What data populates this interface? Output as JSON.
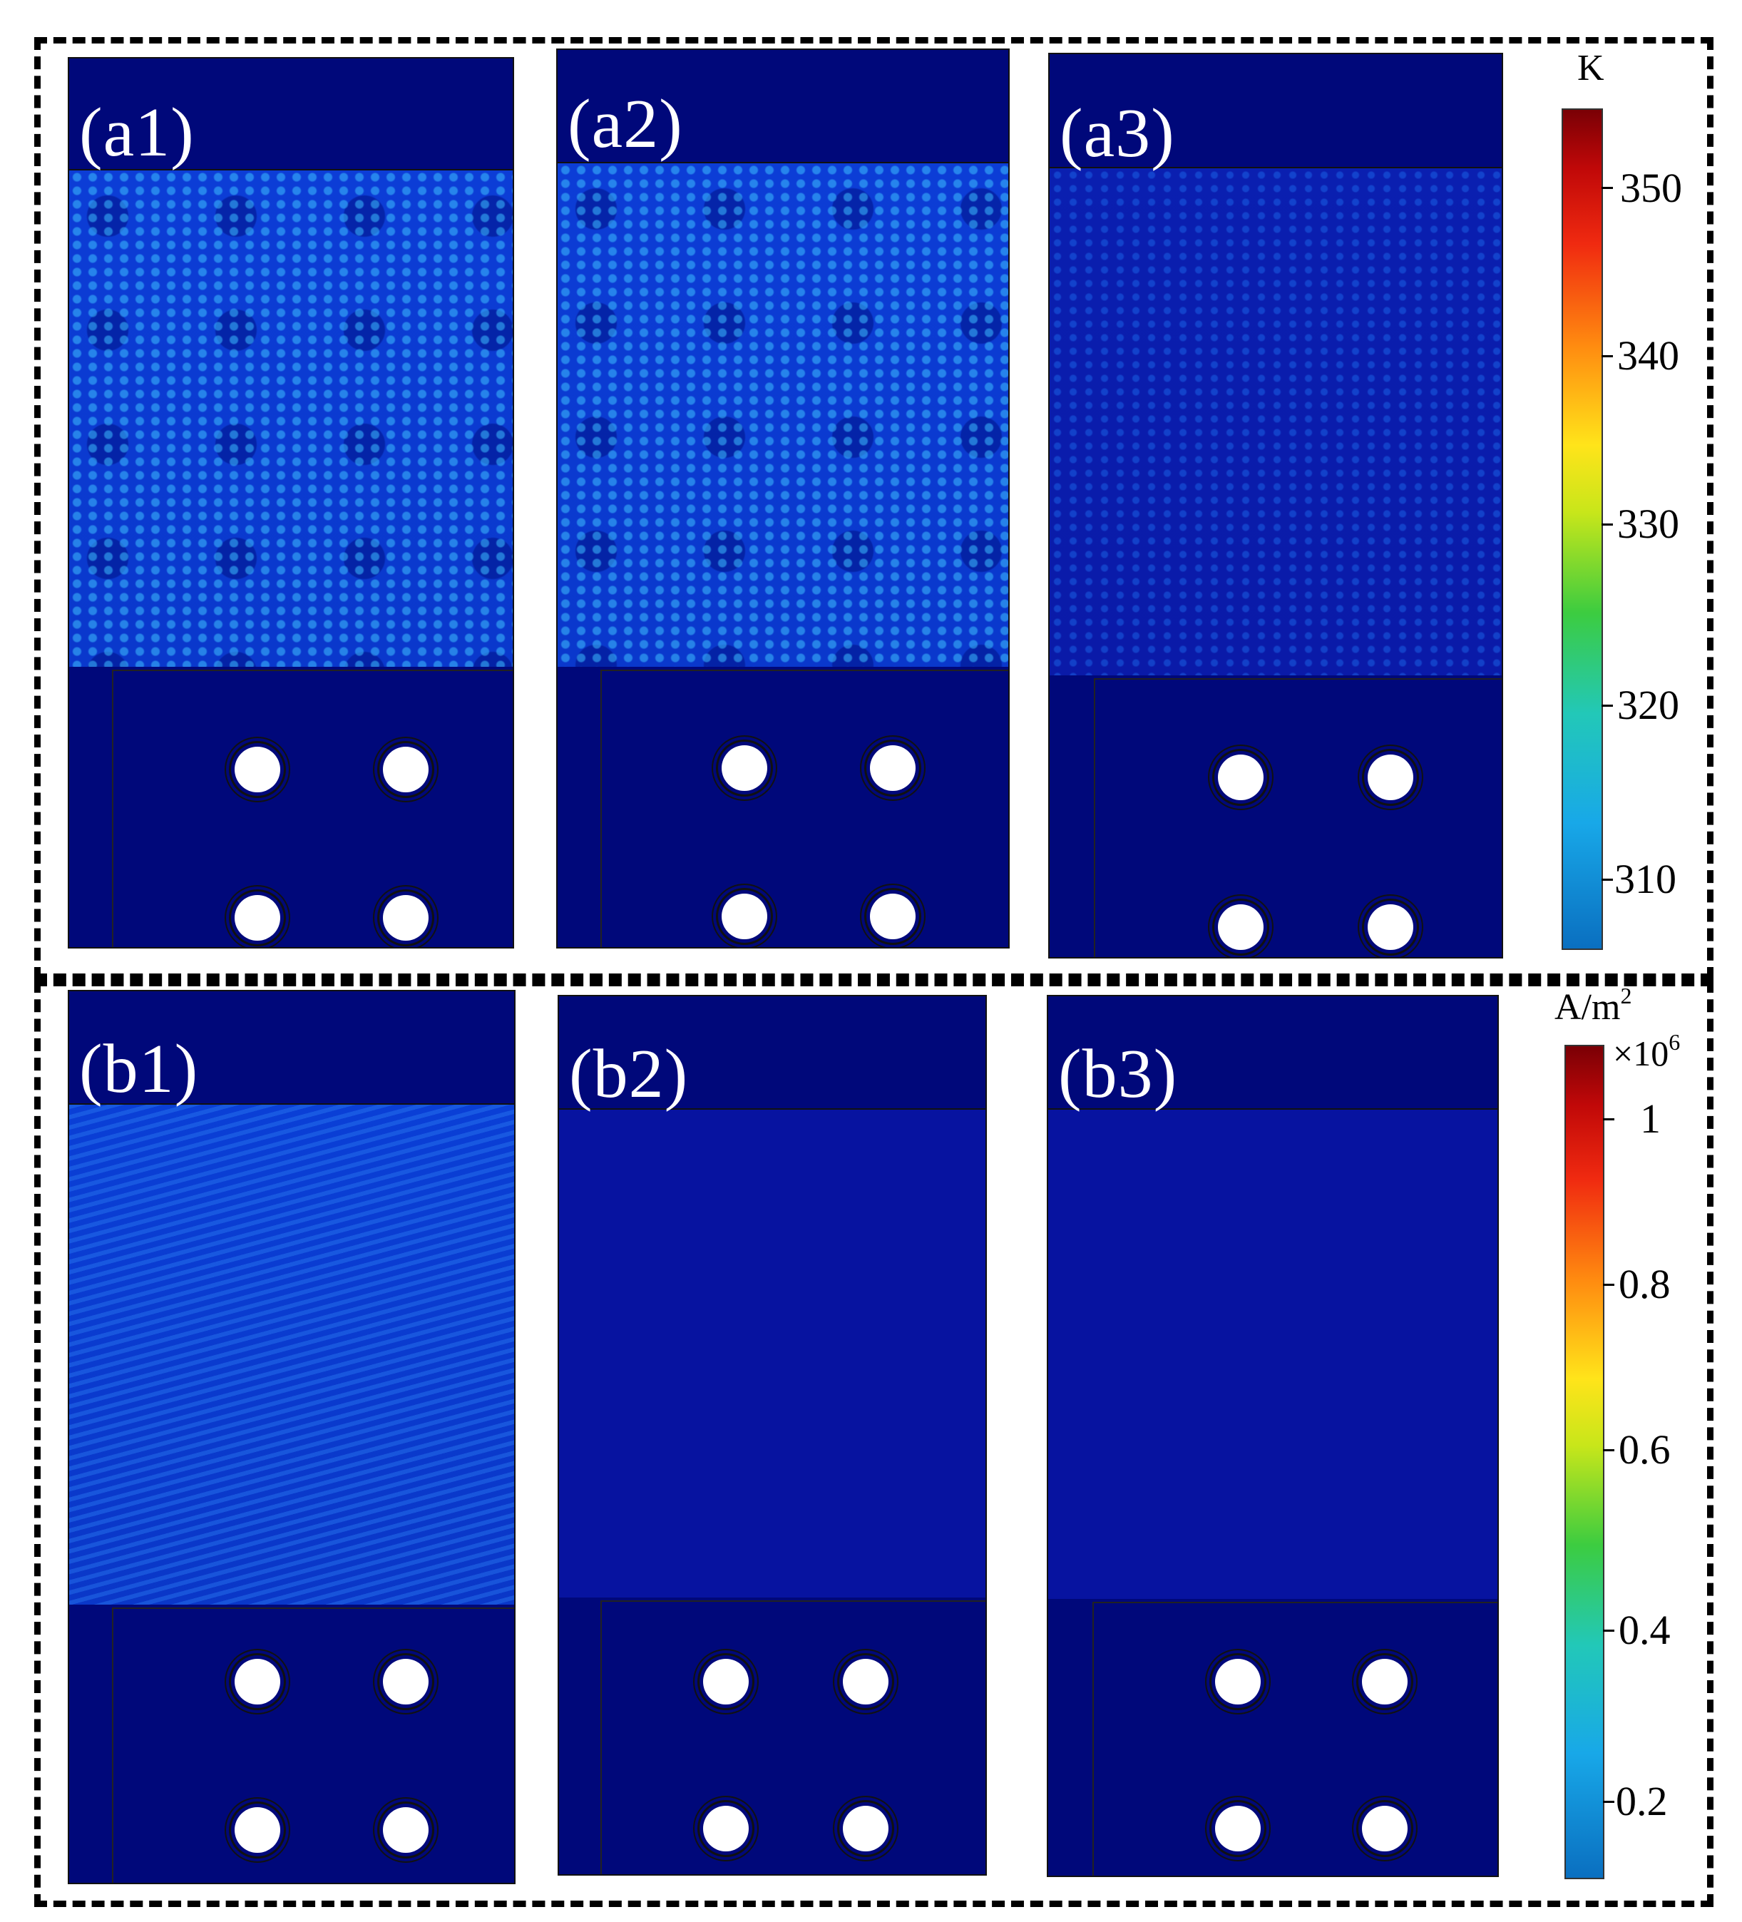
{
  "panels": [
    {
      "label": "(a1)"
    },
    {
      "label": "(a2)"
    },
    {
      "label": "(a3)"
    },
    {
      "label": "(b1)"
    },
    {
      "label": "(b2)"
    },
    {
      "label": "(b3)"
    }
  ],
  "colorbar_top": {
    "unit": "K",
    "ticks": [
      "350",
      "340",
      "330",
      "320",
      "310"
    ]
  },
  "colorbar_bottom": {
    "unit": "A/m",
    "unit_sup": "2",
    "multiplier": "×10",
    "multiplier_sup": "6",
    "ticks": [
      "1",
      "0.8",
      "0.6",
      "0.4",
      "0.2"
    ]
  }
}
